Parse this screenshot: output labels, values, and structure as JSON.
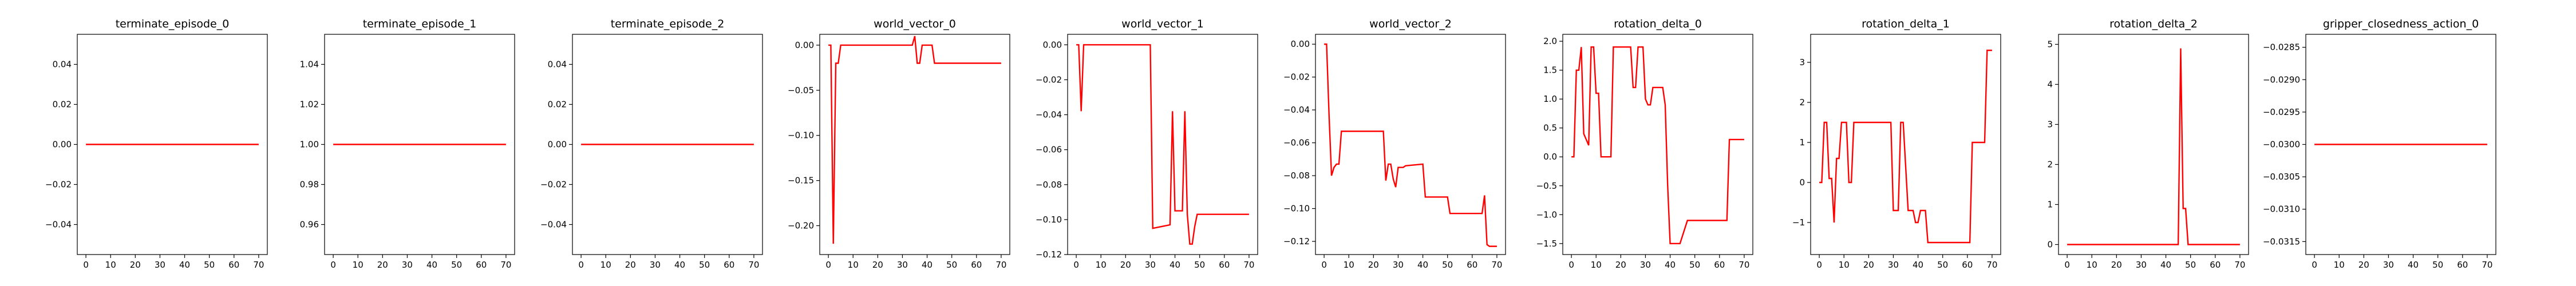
{
  "style": {
    "line_color": "#ff0000",
    "frame_color": "#000000"
  },
  "chart_data": [
    {
      "type": "line",
      "title": "terminate_episode_0",
      "xlim": [
        -3.5,
        73.5
      ],
      "ylim": [
        -0.055,
        0.055
      ],
      "xticks": [
        0,
        10,
        20,
        30,
        40,
        50,
        60,
        70
      ],
      "yticks": [
        -0.04,
        -0.02,
        0.0,
        0.02,
        0.04
      ],
      "ytick_labels": [
        "−0.04",
        "−0.02",
        "0.00",
        "0.02",
        "0.04"
      ],
      "series": [
        {
          "x": [
            0,
            70
          ],
          "y": [
            0,
            0
          ]
        }
      ]
    },
    {
      "type": "line",
      "title": "terminate_episode_1",
      "xlim": [
        -3.5,
        73.5
      ],
      "ylim": [
        0.945,
        1.055
      ],
      "xticks": [
        0,
        10,
        20,
        30,
        40,
        50,
        60,
        70
      ],
      "yticks": [
        0.96,
        0.98,
        1.0,
        1.02,
        1.04
      ],
      "ytick_labels": [
        "0.96",
        "0.98",
        "1.00",
        "1.02",
        "1.04"
      ],
      "series": [
        {
          "x": [
            0,
            70
          ],
          "y": [
            1,
            1
          ]
        }
      ]
    },
    {
      "type": "line",
      "title": "terminate_episode_2",
      "xlim": [
        -3.5,
        73.5
      ],
      "ylim": [
        -0.055,
        0.055
      ],
      "xticks": [
        0,
        10,
        20,
        30,
        40,
        50,
        60,
        70
      ],
      "yticks": [
        -0.04,
        -0.02,
        0.0,
        0.02,
        0.04
      ],
      "ytick_labels": [
        "−0.04",
        "−0.02",
        "0.00",
        "0.02",
        "0.04"
      ],
      "series": [
        {
          "x": [
            0,
            70
          ],
          "y": [
            0,
            0
          ]
        }
      ]
    },
    {
      "type": "line",
      "title": "world_vector_0",
      "xlim": [
        -3.5,
        73.5
      ],
      "ylim": [
        -0.232,
        0.012
      ],
      "xticks": [
        0,
        10,
        20,
        30,
        40,
        50,
        60,
        70
      ],
      "yticks": [
        -0.2,
        -0.15,
        -0.1,
        -0.05,
        0.0
      ],
      "ytick_labels": [
        "−0.20",
        "−0.15",
        "−0.10",
        "−0.05",
        "0.00"
      ],
      "series": [
        {
          "x": [
            0,
            1,
            2,
            3,
            4,
            5,
            6,
            34,
            35,
            36,
            37,
            38,
            40,
            42,
            43,
            44,
            70
          ],
          "y": [
            0.0,
            0.0,
            -0.22,
            -0.02,
            -0.02,
            0.0,
            0.0,
            0.0,
            0.01,
            -0.02,
            -0.02,
            0.0,
            0.0,
            0.0,
            -0.02,
            -0.02,
            -0.02
          ]
        }
      ]
    },
    {
      "type": "line",
      "title": "world_vector_1",
      "xlim": [
        -3.5,
        73.5
      ],
      "ylim": [
        -0.12,
        0.006
      ],
      "xticks": [
        0,
        10,
        20,
        30,
        40,
        50,
        60,
        70
      ],
      "yticks": [
        -0.12,
        -0.1,
        -0.08,
        -0.06,
        -0.04,
        -0.02,
        0.0
      ],
      "ytick_labels": [
        "−0.12",
        "−0.10",
        "−0.08",
        "−0.06",
        "−0.04",
        "−0.02",
        "0.00"
      ],
      "series": [
        {
          "x": [
            0,
            1,
            2,
            3,
            30,
            31,
            38,
            39,
            40,
            41,
            43,
            44,
            45,
            46,
            47,
            48,
            49,
            50,
            51,
            70
          ],
          "y": [
            0.0,
            0.0,
            -0.038,
            0.0,
            0.0,
            -0.105,
            -0.103,
            -0.038,
            -0.095,
            -0.095,
            -0.095,
            -0.038,
            -0.097,
            -0.114,
            -0.114,
            -0.104,
            -0.097,
            -0.097,
            -0.097,
            -0.097
          ]
        }
      ]
    },
    {
      "type": "line",
      "title": "world_vector_2",
      "xlim": [
        -3.5,
        73.5
      ],
      "ylim": [
        -0.128,
        0.006
      ],
      "xticks": [
        0,
        10,
        20,
        30,
        40,
        50,
        60,
        70
      ],
      "yticks": [
        -0.12,
        -0.1,
        -0.08,
        -0.06,
        -0.04,
        -0.02,
        0.0
      ],
      "ytick_labels": [
        "−0.12",
        "−0.10",
        "−0.08",
        "−0.06",
        "−0.04",
        "−0.02",
        "0.00"
      ],
      "series": [
        {
          "x": [
            0,
            1,
            2,
            3,
            4,
            5,
            6,
            7,
            8,
            24,
            25,
            26,
            27,
            28,
            29,
            30,
            31,
            32,
            33,
            40,
            41,
            42,
            43,
            50,
            51,
            64,
            65,
            66,
            67,
            68,
            70
          ],
          "y": [
            0.0,
            0.0,
            -0.043,
            -0.08,
            -0.075,
            -0.073,
            -0.073,
            -0.053,
            -0.053,
            -0.053,
            -0.083,
            -0.073,
            -0.073,
            -0.082,
            -0.087,
            -0.075,
            -0.075,
            -0.075,
            -0.074,
            -0.073,
            -0.093,
            -0.093,
            -0.093,
            -0.093,
            -0.103,
            -0.103,
            -0.092,
            -0.122,
            -0.123,
            -0.123,
            -0.123
          ]
        }
      ]
    },
    {
      "type": "line",
      "title": "rotation_delta_0",
      "xlim": [
        -3.5,
        73.5
      ],
      "ylim": [
        -1.69,
        2.12
      ],
      "xticks": [
        0,
        10,
        20,
        30,
        40,
        50,
        60,
        70
      ],
      "yticks": [
        -1.5,
        -1.0,
        -0.5,
        0.0,
        0.5,
        1.0,
        1.5,
        2.0
      ],
      "ytick_labels": [
        "−1.5",
        "−1.0",
        "−0.5",
        "0.0",
        "0.5",
        "1.0",
        "1.5",
        "2.0"
      ],
      "series": [
        {
          "x": [
            0,
            1,
            2,
            3,
            4,
            5,
            6,
            7,
            8,
            9,
            10,
            11,
            12,
            13,
            14,
            16,
            17,
            18,
            19,
            20,
            21,
            22,
            23,
            24,
            25,
            26,
            27,
            29,
            30,
            31,
            32,
            33,
            34,
            35,
            36,
            37,
            38,
            39,
            40,
            41,
            42,
            43,
            44,
            47,
            48,
            49,
            63,
            64,
            70
          ],
          "y": [
            0.0,
            0.0,
            1.5,
            1.5,
            1.9,
            0.4,
            0.3,
            0.2,
            1.9,
            1.9,
            1.1,
            1.1,
            0.0,
            0.0,
            0.0,
            0.0,
            1.9,
            1.9,
            1.9,
            1.9,
            1.9,
            1.9,
            1.9,
            1.9,
            1.2,
            1.2,
            1.9,
            1.9,
            1.0,
            0.9,
            0.9,
            1.2,
            1.2,
            1.2,
            1.2,
            1.2,
            0.9,
            -0.5,
            -1.5,
            -1.5,
            -1.5,
            -1.5,
            -1.5,
            -1.1,
            -1.1,
            -1.1,
            -1.1,
            0.3,
            0.3
          ]
        }
      ]
    },
    {
      "type": "line",
      "title": "rotation_delta_1",
      "xlim": [
        -3.5,
        73.5
      ],
      "ylim": [
        -1.8,
        3.7
      ],
      "xticks": [
        0,
        10,
        20,
        30,
        40,
        50,
        60,
        70
      ],
      "yticks": [
        -1,
        0,
        1,
        2,
        3
      ],
      "ytick_labels": [
        "−1",
        "0",
        "1",
        "2",
        "3"
      ],
      "series": [
        {
          "x": [
            0,
            1,
            2,
            3,
            4,
            5,
            6,
            7,
            8,
            9,
            10,
            11,
            12,
            13,
            14,
            15,
            16,
            17,
            18,
            19,
            20,
            21,
            22,
            23,
            24,
            25,
            26,
            27,
            29,
            30,
            32,
            33,
            34,
            36,
            37,
            38,
            39,
            40,
            41,
            42,
            43,
            44,
            45,
            50,
            51,
            52,
            53,
            54,
            55,
            56,
            57,
            58,
            59,
            60,
            61,
            62,
            63,
            64,
            65,
            66,
            67,
            68,
            69,
            70
          ],
          "y": [
            0.0,
            0.0,
            1.5,
            1.5,
            0.1,
            0.1,
            -1.0,
            0.6,
            0.6,
            1.5,
            1.5,
            1.5,
            0.0,
            0.0,
            1.5,
            1.5,
            1.5,
            1.5,
            1.5,
            1.5,
            1.5,
            1.5,
            1.5,
            1.5,
            1.5,
            1.5,
            1.5,
            1.5,
            1.5,
            -0.7,
            -0.7,
            1.5,
            1.5,
            -0.7,
            -0.7,
            -0.7,
            -1.0,
            -1.0,
            -0.7,
            -0.7,
            -0.7,
            -1.5,
            -1.5,
            -1.5,
            -1.5,
            -1.5,
            -1.5,
            -1.5,
            -1.5,
            -1.5,
            -1.5,
            -1.5,
            -1.5,
            -1.5,
            -1.5,
            1.0,
            1.0,
            1.0,
            1.0,
            1.0,
            1.0,
            3.3,
            3.3,
            3.3
          ]
        }
      ]
    },
    {
      "type": "line",
      "title": "rotation_delta_2",
      "xlim": [
        -3.5,
        73.5
      ],
      "ylim": [
        -0.25,
        5.25
      ],
      "xticks": [
        0,
        10,
        20,
        30,
        40,
        50,
        60,
        70
      ],
      "yticks": [
        0,
        1,
        2,
        3,
        4,
        5
      ],
      "ytick_labels": [
        "0",
        "1",
        "2",
        "3",
        "4",
        "5"
      ],
      "series": [
        {
          "x": [
            0,
            44,
            45,
            46,
            47,
            48,
            49,
            70
          ],
          "y": [
            0.0,
            0.0,
            0.0,
            4.9,
            0.9,
            0.9,
            0.0,
            0.0
          ]
        }
      ]
    },
    {
      "type": "line",
      "title": "gripper_closedness_action_0",
      "xlim": [
        -3.5,
        73.5
      ],
      "ylim": [
        -0.0317,
        -0.0283
      ],
      "xticks": [
        0,
        10,
        20,
        30,
        40,
        50,
        60,
        70
      ],
      "yticks": [
        -0.0315,
        -0.031,
        -0.0305,
        -0.03,
        -0.0295,
        -0.029,
        -0.0285
      ],
      "ytick_labels": [
        "−0.0315",
        "−0.0310",
        "−0.0305",
        "−0.0300",
        "−0.0295",
        "−0.0290",
        "−0.0285"
      ],
      "series": [
        {
          "x": [
            0,
            70
          ],
          "y": [
            -0.03,
            -0.03
          ]
        }
      ]
    }
  ]
}
